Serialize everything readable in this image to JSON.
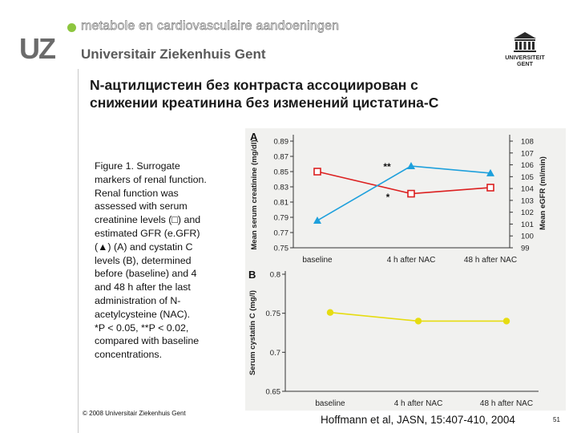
{
  "header": {
    "tagline": "metabole en cardiovasculaire aandoeningen",
    "logo_text": "UZ",
    "institution": "Universitair Ziekenhuis Gent",
    "right_logo_lines": [
      "UNIVERSITEIT",
      "GENT"
    ]
  },
  "slide": {
    "title_line1": "N-ацтилцистеин без контраста ассоциирован с",
    "title_line2": "снижении креатинина без изменений цистатина-С"
  },
  "caption": {
    "lines": [
      "Figure 1. Surrogate",
      "markers of renal function.",
      "Renal function was",
      "assessed with serum",
      "creatinine levels (□) and",
      "estimated GFR (e.GFR)",
      "(▲) (A) and cystatin C",
      "levels (B), determined",
      "before (baseline) and 4",
      "and 48 h after the last",
      "administration of N-",
      "acetylcysteine (NAC).",
      "*P < 0.05, **P < 0.02,",
      "compared with baseline",
      "concentrations."
    ]
  },
  "footer": {
    "copyright": "© 2008 Universitair Ziekenhuis Gent",
    "citation": "Hoffmann et al, JASN, 15:407-410, 2004",
    "page_number": "51"
  },
  "colors": {
    "creatinine": "#dc2020",
    "egfr": "#1ea0dc",
    "cystatin": "#e6dc10",
    "axis": "#333333",
    "chart_bg": "#f1f1ef"
  },
  "chart_data": [
    {
      "panel_label": "A",
      "type": "line",
      "categories": [
        "baseline",
        "4 h after NAC",
        "48 h after NAC"
      ],
      "ylabel_left": "Mean serum creatinine (mg/dl)",
      "ylabel_right": "Mean eGFR (ml/min)",
      "ylim_left": [
        0.75,
        0.89
      ],
      "ylim_right": [
        99,
        108
      ],
      "left_ticks": [
        "0.89",
        "0.87",
        "0.85",
        "0.83",
        "0.81",
        "0.79",
        "0.77",
        "0.75"
      ],
      "right_ticks": [
        "108",
        "107",
        "106",
        "105",
        "104",
        "103",
        "102",
        "101",
        "100",
        "99"
      ],
      "series": [
        {
          "values": [
            0.85,
            0.821,
            0.829
          ],
          "axis": "left",
          "marker": "square",
          "color": "#dc2020"
        },
        {
          "values": [
            101.3,
            105.9,
            105.3
          ],
          "axis": "right",
          "marker": "triangle",
          "color": "#1ea0dc"
        }
      ],
      "annotations": [
        "**",
        "*"
      ],
      "grid": false
    },
    {
      "panel_label": "B",
      "type": "line",
      "categories": [
        "baseline",
        "4 h after NAC",
        "48 h after NAC"
      ],
      "ylabel": "Serum cystatin C (mg/l)",
      "ylim": [
        0.65,
        0.8
      ],
      "y_ticks": [
        "0.8",
        "0.75",
        "0.7",
        "0.65"
      ],
      "series": [
        {
          "values": [
            0.751,
            0.74,
            0.74
          ],
          "marker": "circle",
          "color": "#e6dc10"
        }
      ],
      "grid": false
    }
  ]
}
